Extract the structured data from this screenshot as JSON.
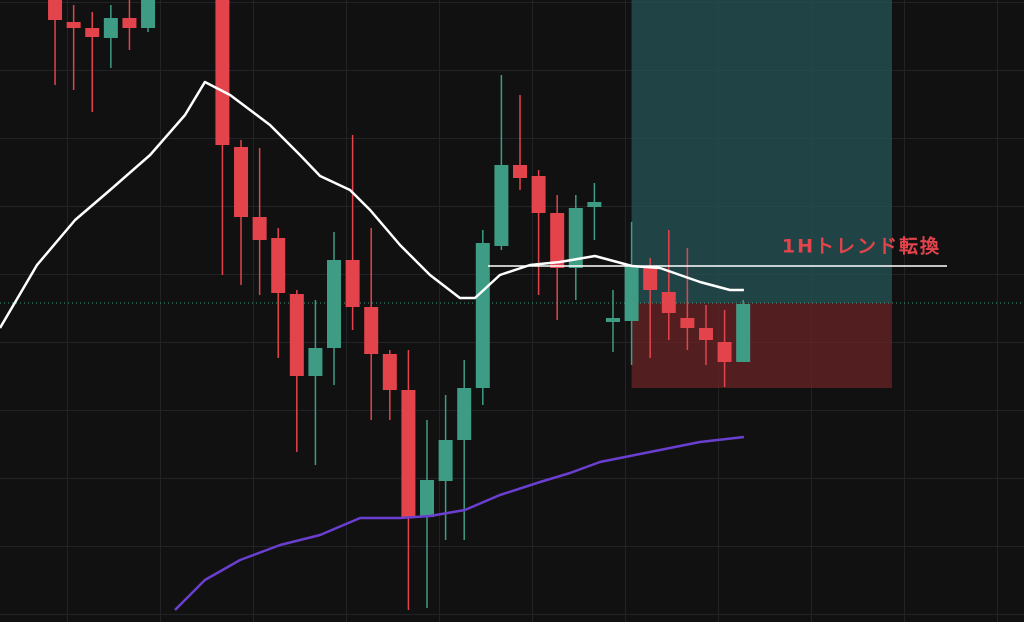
{
  "chart_data": {
    "type": "candlestick",
    "up_color": "#3f9c84",
    "down_color": "#e3444b",
    "xlim": [
      -2.96,
      52.1
    ],
    "ylim": [
      0,
      622
    ],
    "grid": true,
    "x": [
      0,
      1,
      2,
      3,
      4,
      5,
      9,
      10,
      11,
      12,
      13,
      14,
      15,
      16,
      17,
      18,
      19,
      20,
      21,
      22,
      23,
      24,
      25,
      26,
      27,
      28,
      29,
      30,
      31,
      32,
      33,
      34,
      35,
      36,
      37
    ],
    "open": [
      622,
      600,
      594,
      584,
      604,
      594,
      622,
      475,
      405,
      384,
      328,
      246,
      274,
      362,
      315,
      268,
      232,
      105,
      141,
      182,
      234,
      376,
      457,
      446,
      409,
      354,
      415,
      300,
      301,
      356,
      330,
      304,
      294,
      280,
      260
    ],
    "high": [
      622,
      617,
      610,
      617,
      622,
      622,
      622,
      482,
      474,
      394,
      332,
      322,
      390,
      487,
      394,
      272,
      272,
      202,
      227,
      262,
      392,
      547,
      527,
      452,
      427,
      427,
      439,
      332,
      400,
      364,
      392,
      374,
      317,
      312,
      322
    ],
    "low": [
      537,
      532,
      510,
      554,
      572,
      590,
      347,
      337,
      327,
      264,
      170,
      157,
      237,
      292,
      202,
      202,
      12,
      14,
      82,
      82,
      217,
      372,
      432,
      327,
      302,
      322,
      382,
      270,
      257,
      264,
      282,
      272,
      257,
      235,
      260
    ],
    "close": [
      602,
      594,
      585,
      604,
      594,
      622,
      477,
      405,
      382,
      329,
      246,
      274,
      362,
      315,
      268,
      232,
      105,
      142,
      182,
      234,
      379,
      457,
      444,
      409,
      354,
      414,
      420,
      304,
      356,
      332,
      309,
      294,
      282,
      260,
      318
    ],
    "lines": [
      {
        "color": "#ffffff",
        "x": [
          -2.96,
          -0.97,
          1.08,
          2.96,
          5.11,
          6.99,
          8.06,
          9.41,
          11.56,
          13.17,
          14.25,
          15.86,
          16.94,
          18.55,
          20.16,
          21.77,
          22.58,
          23.92,
          25.54,
          27.15,
          29.03,
          31.02,
          32.53,
          34.68,
          36.29,
          37.04
        ],
        "values": [
          294,
          357,
          402,
          432,
          467,
          507,
          540,
          527,
          497,
          467,
          446,
          432,
          412,
          377,
          347,
          324,
          324,
          347,
          357,
          360,
          366,
          356,
          354,
          340,
          332,
          332
        ]
      },
      {
        "color": "#6a3fd0",
        "x": [
          6.45,
          8.06,
          9.95,
          12.1,
          14.25,
          16.4,
          18.55,
          20.16,
          22.04,
          23.92,
          26.08,
          27.69,
          29.3,
          31.99,
          34.68,
          37.04
        ],
        "values": [
          12,
          42,
          62,
          77,
          87,
          104,
          104,
          106,
          112,
          127,
          140,
          149,
          160,
          170,
          180,
          185
        ]
      }
    ],
    "position": {
      "x": [
        31.0,
        45.0
      ],
      "entry": 319,
      "target": 622,
      "stop": 234,
      "target_color": "rgba(38,84,88,0.75)",
      "stop_color": "rgba(110,36,38,0.72)"
    },
    "price_line": {
      "value": 319,
      "color": "#3f9c84"
    },
    "level": {
      "x": [
        23.28,
        47.96
      ],
      "value": 356,
      "label": "1Hトレンド転換",
      "color": "#ffffff",
      "label_color": "#e3444b"
    }
  }
}
